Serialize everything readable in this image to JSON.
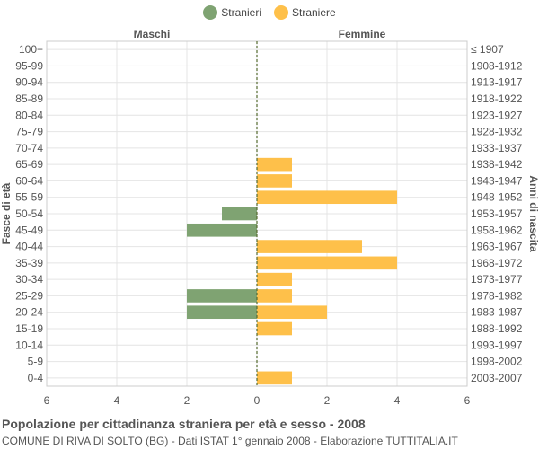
{
  "colors": {
    "males": "#7fa372",
    "females": "#fec04a",
    "grid": "#e4e4e4",
    "axis": "#666666",
    "center": "#556b2f"
  },
  "chart_data": {
    "type": "bar",
    "orientation": "horizontal",
    "legend": [
      "Stranieri",
      "Straniere"
    ],
    "legend_position": "top-center",
    "left_header": "Maschi",
    "right_header": "Femmine",
    "ylabel_left": "Fasce di età",
    "ylabel_right": "Anni di nascita",
    "xlim": [
      -6,
      6
    ],
    "xticks": [
      -6,
      -4,
      -2,
      0,
      2,
      4,
      6
    ],
    "xtick_labels": [
      "6",
      "4",
      "2",
      "0",
      "2",
      "4",
      "6"
    ],
    "grid": true,
    "categories": [
      "100+",
      "95-99",
      "90-94",
      "85-89",
      "80-84",
      "75-79",
      "70-74",
      "65-69",
      "60-64",
      "55-59",
      "50-54",
      "45-49",
      "40-44",
      "35-39",
      "30-34",
      "25-29",
      "20-24",
      "15-19",
      "10-14",
      "5-9",
      "0-4"
    ],
    "birth_years": [
      "≤ 1907",
      "1908-1912",
      "1913-1917",
      "1918-1922",
      "1923-1927",
      "1928-1932",
      "1933-1937",
      "1938-1942",
      "1943-1947",
      "1948-1952",
      "1953-1957",
      "1958-1962",
      "1963-1967",
      "1968-1972",
      "1973-1977",
      "1978-1982",
      "1983-1987",
      "1988-1992",
      "1993-1997",
      "1998-2002",
      "2003-2007"
    ],
    "series": [
      {
        "name": "Stranieri",
        "values": [
          0,
          0,
          0,
          0,
          0,
          0,
          0,
          0,
          0,
          0,
          1,
          2,
          0,
          0,
          0,
          2,
          2,
          0,
          0,
          0,
          0
        ]
      },
      {
        "name": "Straniere",
        "values": [
          0,
          0,
          0,
          0,
          0,
          0,
          0,
          1,
          1,
          4,
          0,
          0,
          3,
          4,
          1,
          1,
          2,
          1,
          0,
          0,
          1
        ]
      }
    ]
  },
  "footer": {
    "title": "Popolazione per cittadinanza straniera per età e sesso - 2008",
    "subtitle": "COMUNE DI RIVA DI SOLTO (BG) - Dati ISTAT 1° gennaio 2008 - Elaborazione TUTTITALIA.IT"
  }
}
